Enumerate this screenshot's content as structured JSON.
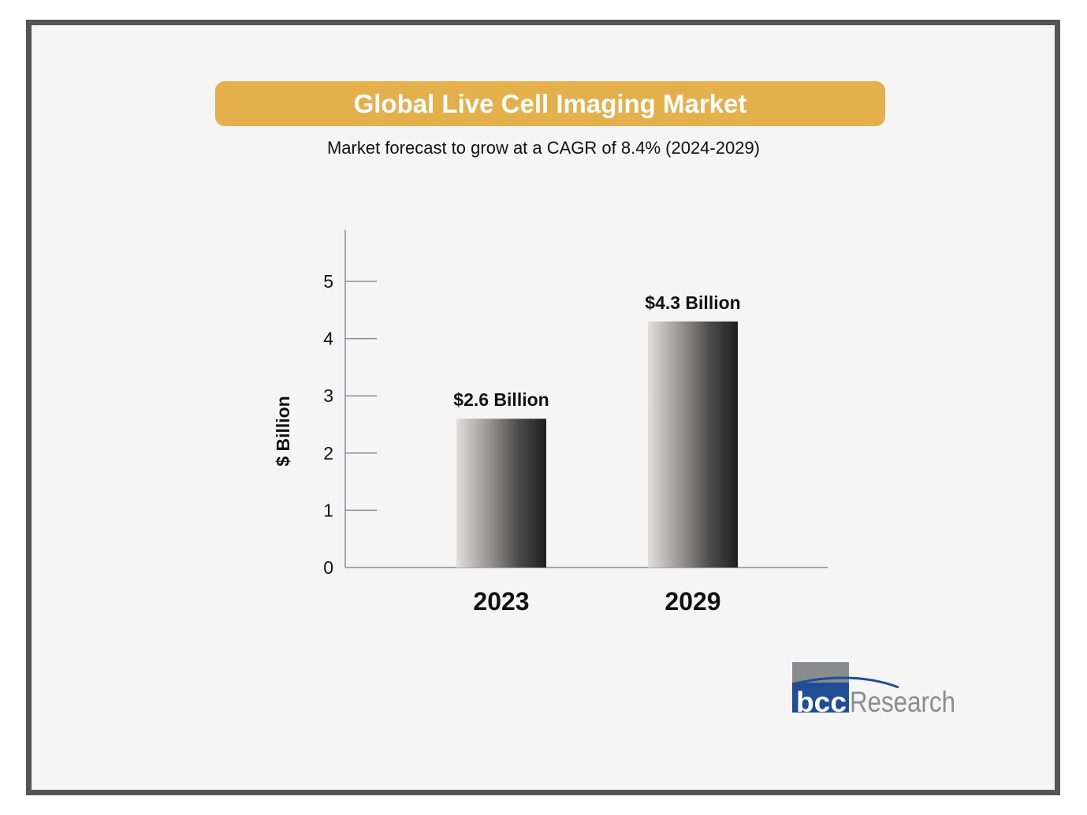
{
  "chart_data": {
    "type": "bar",
    "title": "Global Live Cell Imaging Market",
    "subtitle": "Market forecast to grow at a CAGR of 8.4% (2024-2029)",
    "categories": [
      "2023",
      "2029"
    ],
    "values": [
      2.6,
      4.3
    ],
    "data_labels": [
      "$2.6 Billion",
      "$4.3 Billion"
    ],
    "xlabel": "",
    "ylabel": "$ Billion",
    "ylim": [
      0,
      5.9
    ],
    "yticks": [
      "0",
      "1",
      "2",
      "3",
      "4",
      "5"
    ],
    "grid": false,
    "legend": "none",
    "colors": {
      "banner": "#e3b04b",
      "frame": "#555555",
      "background": "#f5f5f5",
      "bar_light": "#e2dedd",
      "bar_dark": "#222222"
    }
  },
  "logo": {
    "text": "bccResearch",
    "colors": {
      "blue": "#1f4e96",
      "gray": "#8a8c8e"
    }
  }
}
